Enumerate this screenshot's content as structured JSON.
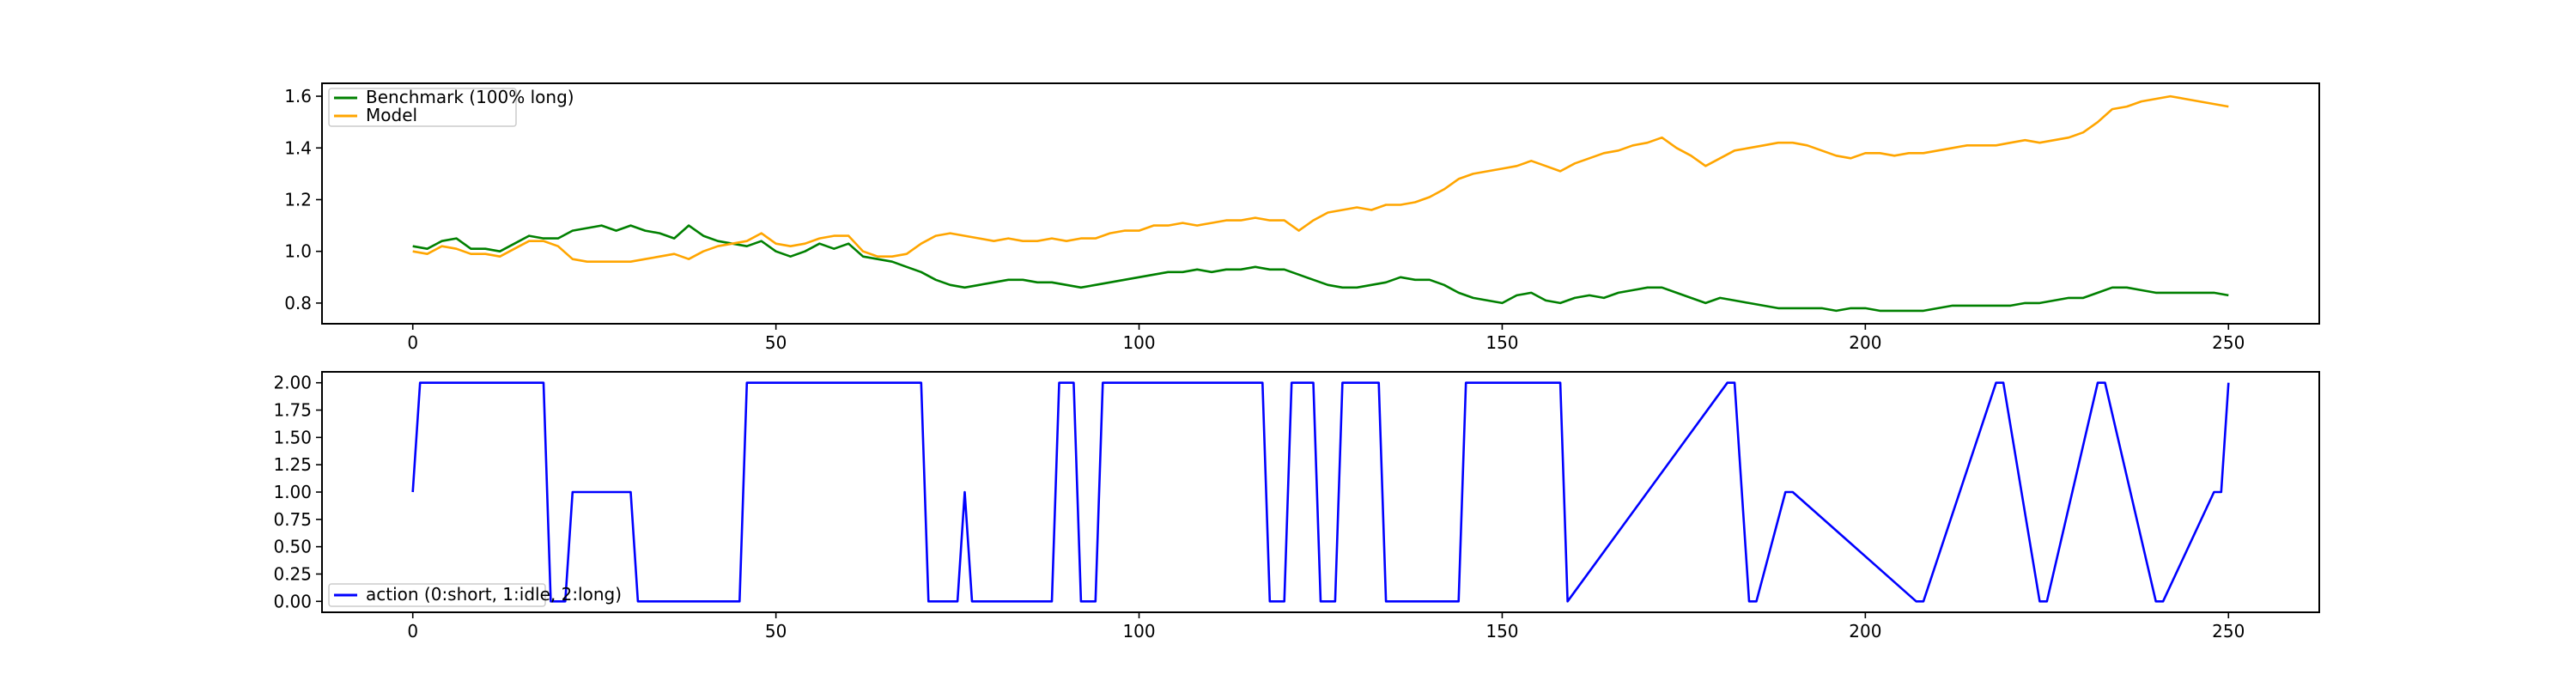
{
  "chart_data": [
    {
      "type": "line",
      "legend_position": "top-left",
      "grid": false,
      "xlim": [
        -12.5,
        262.5
      ],
      "ylim": [
        0.72,
        1.65
      ],
      "x_ticks": [
        0,
        50,
        100,
        150,
        200,
        250
      ],
      "x_tick_labels": [
        "0",
        "50",
        "100",
        "150",
        "200",
        "250"
      ],
      "y_ticks": [
        0.8,
        1.0,
        1.2,
        1.4,
        1.6
      ],
      "y_tick_labels": [
        "0.8",
        "1.0",
        "1.2",
        "1.4",
        "1.6"
      ],
      "x": [
        0,
        2,
        4,
        6,
        8,
        10,
        12,
        14,
        16,
        18,
        20,
        22,
        24,
        26,
        28,
        30,
        32,
        34,
        36,
        38,
        40,
        42,
        44,
        46,
        48,
        50,
        52,
        54,
        56,
        58,
        60,
        62,
        64,
        66,
        68,
        70,
        72,
        74,
        76,
        78,
        80,
        82,
        84,
        86,
        88,
        90,
        92,
        94,
        96,
        98,
        100,
        102,
        104,
        106,
        108,
        110,
        112,
        114,
        116,
        118,
        120,
        122,
        124,
        126,
        128,
        130,
        132,
        134,
        136,
        138,
        140,
        142,
        144,
        146,
        148,
        150,
        152,
        154,
        156,
        158,
        160,
        162,
        164,
        166,
        168,
        170,
        172,
        174,
        176,
        178,
        180,
        182,
        184,
        186,
        188,
        190,
        192,
        194,
        196,
        198,
        200,
        202,
        204,
        206,
        208,
        210,
        212,
        214,
        216,
        218,
        220,
        222,
        224,
        226,
        228,
        230,
        232,
        234,
        236,
        238,
        240,
        242,
        244,
        246,
        248,
        250
      ],
      "series": [
        {
          "name": "Benchmark (100% long)",
          "color": "#008000",
          "values": [
            1.02,
            1.01,
            1.04,
            1.05,
            1.01,
            1.01,
            1.0,
            1.03,
            1.06,
            1.05,
            1.05,
            1.08,
            1.09,
            1.1,
            1.08,
            1.1,
            1.08,
            1.07,
            1.05,
            1.1,
            1.06,
            1.04,
            1.03,
            1.02,
            1.04,
            1.0,
            0.98,
            1.0,
            1.03,
            1.01,
            1.03,
            0.98,
            0.97,
            0.96,
            0.94,
            0.92,
            0.89,
            0.87,
            0.86,
            0.87,
            0.88,
            0.89,
            0.89,
            0.88,
            0.88,
            0.87,
            0.86,
            0.87,
            0.88,
            0.89,
            0.9,
            0.91,
            0.92,
            0.92,
            0.93,
            0.92,
            0.93,
            0.93,
            0.94,
            0.93,
            0.93,
            0.91,
            0.89,
            0.87,
            0.86,
            0.86,
            0.87,
            0.88,
            0.9,
            0.89,
            0.89,
            0.87,
            0.84,
            0.82,
            0.81,
            0.8,
            0.83,
            0.84,
            0.81,
            0.8,
            0.82,
            0.83,
            0.82,
            0.84,
            0.85,
            0.86,
            0.86,
            0.84,
            0.82,
            0.8,
            0.82,
            0.81,
            0.8,
            0.79,
            0.78,
            0.78,
            0.78,
            0.78,
            0.77,
            0.78,
            0.78,
            0.77,
            0.77,
            0.77,
            0.77,
            0.78,
            0.79,
            0.79,
            0.79,
            0.79,
            0.79,
            0.8,
            0.8,
            0.81,
            0.82,
            0.82,
            0.84,
            0.86,
            0.86,
            0.85,
            0.84,
            0.84,
            0.84,
            0.84,
            0.84,
            0.83
          ]
        },
        {
          "name": "Model",
          "color": "#FFA500",
          "values": [
            1.0,
            0.99,
            1.02,
            1.01,
            0.99,
            0.99,
            0.98,
            1.01,
            1.04,
            1.04,
            1.02,
            0.97,
            0.96,
            0.96,
            0.96,
            0.96,
            0.97,
            0.98,
            0.99,
            0.97,
            1.0,
            1.02,
            1.03,
            1.04,
            1.07,
            1.03,
            1.02,
            1.03,
            1.05,
            1.06,
            1.06,
            1.0,
            0.98,
            0.98,
            0.99,
            1.03,
            1.06,
            1.07,
            1.06,
            1.05,
            1.04,
            1.05,
            1.04,
            1.04,
            1.05,
            1.04,
            1.05,
            1.05,
            1.07,
            1.08,
            1.08,
            1.1,
            1.1,
            1.11,
            1.1,
            1.11,
            1.12,
            1.12,
            1.13,
            1.12,
            1.12,
            1.08,
            1.12,
            1.15,
            1.16,
            1.17,
            1.16,
            1.18,
            1.18,
            1.19,
            1.21,
            1.24,
            1.28,
            1.3,
            1.31,
            1.32,
            1.33,
            1.35,
            1.33,
            1.31,
            1.34,
            1.36,
            1.38,
            1.39,
            1.41,
            1.42,
            1.44,
            1.4,
            1.37,
            1.33,
            1.36,
            1.39,
            1.4,
            1.41,
            1.42,
            1.42,
            1.41,
            1.39,
            1.37,
            1.36,
            1.38,
            1.38,
            1.37,
            1.38,
            1.38,
            1.39,
            1.4,
            1.41,
            1.41,
            1.41,
            1.42,
            1.43,
            1.42,
            1.43,
            1.44,
            1.46,
            1.5,
            1.55,
            1.56,
            1.58,
            1.59,
            1.6,
            1.59,
            1.58,
            1.57,
            1.56
          ]
        }
      ]
    },
    {
      "type": "line",
      "legend_position": "bottom-left",
      "grid": false,
      "xlim": [
        -12.5,
        262.5
      ],
      "ylim": [
        -0.1,
        2.1
      ],
      "x_ticks": [
        0,
        50,
        100,
        150,
        200,
        250
      ],
      "x_tick_labels": [
        "0",
        "50",
        "100",
        "150",
        "200",
        "250"
      ],
      "y_ticks": [
        0.0,
        0.25,
        0.5,
        0.75,
        1.0,
        1.25,
        1.5,
        1.75,
        2.0
      ],
      "y_tick_labels": [
        "0.00",
        "0.25",
        "0.50",
        "0.75",
        "1.00",
        "1.25",
        "1.50",
        "1.75",
        "2.00"
      ],
      "x": [
        0,
        1,
        18,
        19,
        21,
        22,
        30,
        31,
        45,
        46,
        70,
        71,
        75,
        76,
        77,
        88,
        89,
        91,
        92,
        94,
        95,
        117,
        118,
        120,
        121,
        124,
        125,
        127,
        128,
        133,
        134,
        144,
        145,
        158,
        159,
        181,
        182,
        184,
        185,
        189,
        190,
        207,
        208,
        218,
        219,
        224,
        225,
        232,
        233,
        240,
        241,
        248,
        249,
        250
      ],
      "series": [
        {
          "name": "action (0:short, 1:idle, 2:long)",
          "color": "#0000FF",
          "values": [
            1,
            2,
            2,
            0,
            0,
            1,
            1,
            0,
            0,
            2,
            2,
            0,
            0,
            1,
            0,
            0,
            2,
            2,
            0,
            0,
            2,
            2,
            0,
            0,
            2,
            2,
            0,
            0,
            2,
            2,
            0,
            0,
            2,
            2,
            0,
            2,
            2,
            0,
            0,
            1,
            1,
            0,
            0,
            2,
            2,
            0,
            0,
            2,
            2,
            0,
            0,
            1,
            1,
            2
          ]
        }
      ]
    }
  ]
}
